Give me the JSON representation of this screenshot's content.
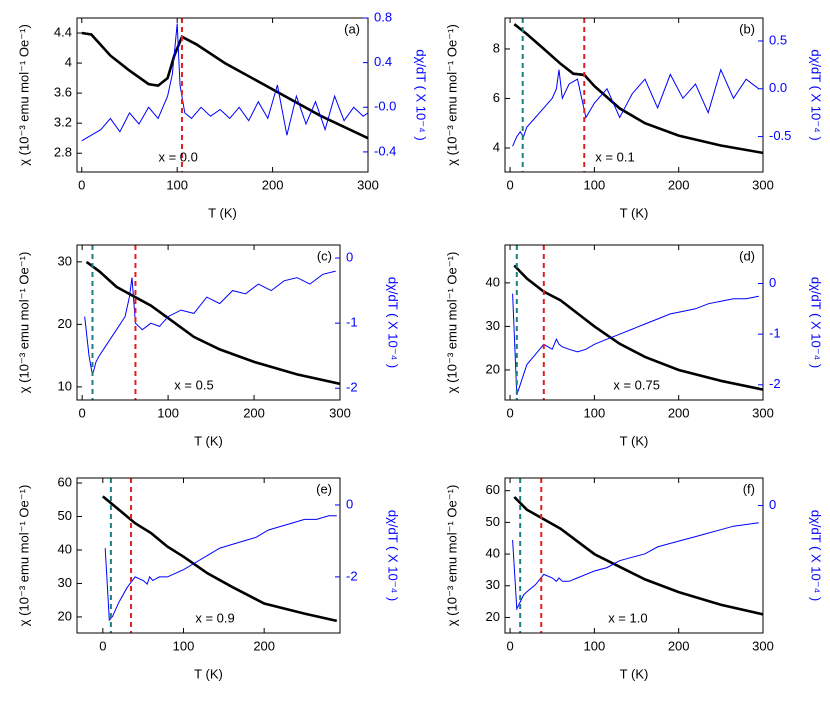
{
  "chart_data": [
    {
      "type": "line",
      "panel_label": "(a)",
      "annotation": "x = 0.0",
      "xlabel": "T (K)",
      "ylabel": "χ (10⁻³ emu mol⁻¹ Oe⁻¹)",
      "y2label": "dχ/dT ( X 10⁻⁴ )",
      "xlim": [
        -5,
        300
      ],
      "xticks": [
        0,
        100,
        200,
        300
      ],
      "ylim": [
        2.55,
        4.6
      ],
      "yticks": [
        2.8,
        3.2,
        3.6,
        4.0,
        4.4
      ],
      "y2lim": [
        -0.58,
        0.8
      ],
      "y2ticks": [
        -0.4,
        {
          "value": 0,
          "label": "-0.0"
        },
        0.4,
        0.8
      ],
      "series": [
        {
          "color": "#000000",
          "x": [
            0,
            10,
            30,
            50,
            70,
            80,
            90,
            97,
            105,
            120,
            150,
            200,
            250,
            300
          ],
          "values": [
            4.4,
            4.38,
            4.1,
            3.9,
            3.72,
            3.7,
            3.8,
            4.1,
            4.35,
            4.25,
            4.0,
            3.65,
            3.3,
            3.0
          ]
        },
        {
          "color": "#0000ff",
          "axis": "y2",
          "x": [
            0,
            10,
            20,
            30,
            40,
            50,
            60,
            70,
            80,
            90,
            95,
            100,
            103,
            108,
            115,
            125,
            135,
            145,
            155,
            165,
            175,
            185,
            195,
            205,
            215,
            225,
            235,
            245,
            255,
            265,
            275,
            285,
            295,
            300
          ],
          "values": [
            -0.3,
            -0.25,
            -0.2,
            -0.1,
            -0.22,
            -0.05,
            -0.15,
            0.0,
            -0.1,
            0.1,
            0.3,
            0.75,
            0.2,
            -0.05,
            -0.1,
            0.0,
            -0.08,
            -0.02,
            -0.1,
            0.0,
            -0.12,
            0.05,
            -0.1,
            0.2,
            -0.25,
            0.1,
            -0.15,
            0.05,
            -0.2,
            0.1,
            -0.12,
            0.0,
            -0.08,
            -0.05
          ]
        }
      ],
      "vlines": [
        {
          "x": 105,
          "color": "#e02020"
        }
      ]
    },
    {
      "type": "line",
      "panel_label": "(b)",
      "annotation": "x = 0.1",
      "xlabel": "T (K)",
      "ylabel": "χ (10⁻³ emu mol⁻¹ Oe⁻¹)",
      "y2label": "dχ/dT ( X 10⁻⁴ )",
      "xlim": [
        -6,
        300
      ],
      "xticks": [
        0,
        100,
        200,
        300
      ],
      "ylim": [
        3.03,
        9.25
      ],
      "yticks": [
        4,
        6,
        8
      ],
      "y2lim": [
        -0.87,
        0.74
      ],
      "y2ticks": [
        -0.5,
        {
          "value": 0,
          "label": "0.0"
        },
        0.5
      ],
      "series": [
        {
          "color": "#000000",
          "x": [
            5,
            20,
            40,
            60,
            75,
            88,
            100,
            130,
            160,
            200,
            250,
            300
          ],
          "values": [
            9,
            8.6,
            8,
            7.4,
            7,
            6.95,
            6.5,
            5.6,
            5,
            4.5,
            4.1,
            3.8
          ]
        },
        {
          "color": "#0000ff",
          "axis": "y2",
          "x": [
            3,
            8,
            12,
            16,
            20,
            30,
            40,
            50,
            55,
            58,
            62,
            70,
            80,
            90,
            100,
            115,
            130,
            145,
            160,
            175,
            190,
            205,
            220,
            235,
            250,
            265,
            280,
            295
          ],
          "values": [
            -0.6,
            -0.5,
            -0.45,
            -0.5,
            -0.4,
            -0.3,
            -0.2,
            -0.1,
            0.0,
            0.2,
            -0.1,
            0.05,
            0.1,
            -0.3,
            -0.15,
            0.0,
            -0.3,
            -0.05,
            0.1,
            -0.2,
            0.15,
            -0.1,
            0.05,
            -0.25,
            0.2,
            -0.1,
            0.1,
            0.0
          ]
        }
      ],
      "vlines": [
        {
          "x": 15,
          "color": "#1a8080"
        },
        {
          "x": 88,
          "color": "#e02020"
        }
      ]
    },
    {
      "type": "line",
      "panel_label": "(c)",
      "annotation": "x = 0.5",
      "xlabel": "T (K)",
      "ylabel": "χ (10⁻³ emu mol⁻¹ Oe⁻¹)",
      "y2label": "dχ/dT ( X 10⁻⁴ )",
      "xlim": [
        -6,
        300
      ],
      "xticks": [
        0,
        100,
        200,
        300
      ],
      "ylim": [
        7.9,
        32.7
      ],
      "yticks": [
        10,
        20,
        30
      ],
      "y2lim": [
        -2.18,
        0.2
      ],
      "y2ticks": [
        -2,
        -1,
        0
      ],
      "series": [
        {
          "color": "#000000",
          "x": [
            5,
            20,
            40,
            60,
            80,
            100,
            130,
            160,
            200,
            250,
            300
          ],
          "values": [
            30,
            28.5,
            26,
            24.5,
            23,
            21,
            18,
            16,
            14,
            12,
            10.5
          ]
        },
        {
          "color": "#0000ff",
          "axis": "y2",
          "x": [
            3,
            8,
            12,
            16,
            20,
            30,
            40,
            50,
            55,
            58,
            62,
            70,
            80,
            90,
            100,
            115,
            130,
            145,
            160,
            175,
            190,
            205,
            220,
            235,
            250,
            265,
            280,
            295
          ],
          "values": [
            -0.9,
            -1.5,
            -1.8,
            -1.6,
            -1.5,
            -1.3,
            -1.1,
            -0.9,
            -0.6,
            -0.3,
            -1.0,
            -1.1,
            -1.0,
            -1.05,
            -0.9,
            -0.8,
            -0.85,
            -0.6,
            -0.7,
            -0.5,
            -0.55,
            -0.4,
            -0.5,
            -0.35,
            -0.3,
            -0.4,
            -0.25,
            -0.2
          ]
        }
      ],
      "vlines": [
        {
          "x": 12,
          "color": "#1a8080"
        },
        {
          "x": 62,
          "color": "#e02020"
        }
      ]
    },
    {
      "type": "line",
      "panel_label": "(d)",
      "annotation": "x = 0.75",
      "xlabel": "T (K)",
      "ylabel": "χ (10⁻³ emu mol⁻¹ Oe⁻¹)",
      "y2label": "dχ/dT ( X 10⁻⁴ )",
      "xlim": [
        -6,
        300
      ],
      "xticks": [
        0,
        100,
        200,
        300
      ],
      "ylim": [
        13.1,
        48.7
      ],
      "yticks": [
        20,
        30,
        40
      ],
      "y2lim": [
        -2.3,
        0.76
      ],
      "y2ticks": [
        -2,
        -1,
        0
      ],
      "series": [
        {
          "color": "#000000",
          "x": [
            5,
            20,
            40,
            60,
            80,
            100,
            130,
            160,
            200,
            250,
            300
          ],
          "values": [
            44,
            41,
            38,
            36,
            33,
            30,
            26,
            23,
            20,
            17.5,
            15.5
          ]
        },
        {
          "color": "#0000ff",
          "axis": "y2",
          "x": [
            3,
            8,
            12,
            16,
            20,
            30,
            40,
            50,
            55,
            58,
            62,
            70,
            80,
            90,
            100,
            115,
            130,
            145,
            160,
            175,
            190,
            205,
            220,
            235,
            250,
            265,
            280,
            295
          ],
          "values": [
            -0.2,
            -2.2,
            -2.0,
            -1.8,
            -1.6,
            -1.4,
            -1.2,
            -1.3,
            -1.1,
            -1.2,
            -1.25,
            -1.3,
            -1.35,
            -1.3,
            -1.2,
            -1.1,
            -1.0,
            -0.9,
            -0.8,
            -0.7,
            -0.6,
            -0.55,
            -0.5,
            -0.4,
            -0.35,
            -0.3,
            -0.3,
            -0.25
          ]
        }
      ],
      "vlines": [
        {
          "x": 8,
          "color": "#1a8080"
        },
        {
          "x": 40,
          "color": "#e02020"
        }
      ]
    },
    {
      "type": "line",
      "panel_label": "(e)",
      "annotation": "x = 0.9",
      "xlabel": "T (K)",
      "ylabel": "χ (10⁻³ emu mol⁻¹ Oe⁻¹)",
      "y2label": "dχ/dT ( X 10⁻⁴ )",
      "xlim": [
        -32,
        294
      ],
      "xticks": [
        0,
        100,
        200
      ],
      "ylim": [
        15.2,
        61.5
      ],
      "yticks": [
        20,
        30,
        40,
        50,
        60
      ],
      "y2lim": [
        -3.56,
        0.75
      ],
      "y2ticks": [
        -2,
        0
      ],
      "series": [
        {
          "color": "#000000",
          "x": [
            0,
            20,
            40,
            60,
            80,
            100,
            130,
            160,
            200,
            250,
            290
          ],
          "values": [
            56,
            52,
            48,
            45,
            41,
            38,
            33,
            29,
            24,
            21,
            18.8
          ]
        },
        {
          "color": "#0000ff",
          "axis": "y2",
          "x": [
            3,
            8,
            12,
            16,
            20,
            30,
            40,
            50,
            55,
            58,
            62,
            70,
            80,
            90,
            100,
            115,
            130,
            145,
            160,
            175,
            190,
            205,
            220,
            235,
            250,
            265,
            280,
            290
          ],
          "values": [
            -1.2,
            -3.2,
            -3.1,
            -2.9,
            -2.7,
            -2.3,
            -2.0,
            -2.1,
            -2.2,
            -2.0,
            -2.1,
            -2.0,
            -2.0,
            -1.9,
            -1.8,
            -1.6,
            -1.4,
            -1.2,
            -1.1,
            -1.0,
            -0.9,
            -0.7,
            -0.6,
            -0.5,
            -0.4,
            -0.4,
            -0.3,
            -0.3
          ]
        }
      ],
      "vlines": [
        {
          "x": 10,
          "color": "#1a8080"
        },
        {
          "x": 35,
          "color": "#e02020"
        }
      ]
    },
    {
      "type": "line",
      "panel_label": "(f)",
      "annotation": "x = 1.0",
      "xlabel": "T (K)",
      "ylabel": "χ (10⁻³ emu mol⁻¹ Oe⁻¹)",
      "y2label": "dχ/dT ( X 10⁻⁴ )",
      "xlim": [
        -6,
        300
      ],
      "xticks": [
        0,
        100,
        200,
        300
      ],
      "ylim": [
        15.1,
        64
      ],
      "yticks": [
        20,
        30,
        40,
        50,
        60
      ],
      "y2lim": [
        -3.7,
        0.8
      ],
      "y2ticks": [
        0
      ],
      "series": [
        {
          "color": "#000000",
          "x": [
            5,
            20,
            40,
            60,
            80,
            100,
            130,
            160,
            200,
            250,
            300
          ],
          "values": [
            58,
            54,
            51,
            48,
            44,
            40,
            36,
            32,
            28,
            24,
            21
          ]
        },
        {
          "color": "#0000ff",
          "axis": "y2",
          "x": [
            3,
            8,
            12,
            16,
            20,
            30,
            40,
            50,
            55,
            58,
            62,
            70,
            80,
            90,
            100,
            115,
            130,
            145,
            160,
            175,
            190,
            205,
            220,
            235,
            250,
            265,
            280,
            295
          ],
          "values": [
            -1,
            -3,
            -2.8,
            -2.6,
            -2.5,
            -2.3,
            -2.0,
            -2.1,
            -2.2,
            -2.1,
            -2.2,
            -2.2,
            -2.1,
            -2.0,
            -1.9,
            -1.8,
            -1.6,
            -1.5,
            -1.4,
            -1.2,
            -1.1,
            -1.0,
            -0.9,
            -0.8,
            -0.7,
            -0.6,
            -0.55,
            -0.5
          ]
        }
      ],
      "vlines": [
        {
          "x": 12,
          "color": "#1a8080"
        },
        {
          "x": 37,
          "color": "#e02020"
        }
      ]
    }
  ]
}
